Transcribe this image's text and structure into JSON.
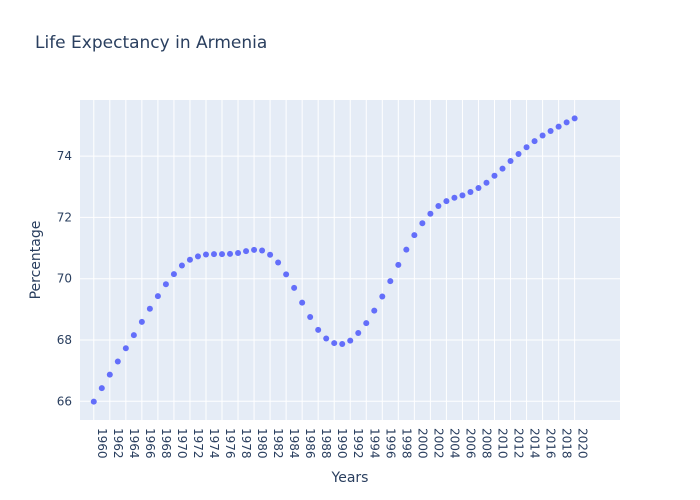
{
  "chart_data": {
    "type": "scatter",
    "title": "Life Expectancy in Armenia",
    "xlabel": "Years",
    "ylabel": "Percentage",
    "x": [
      1960,
      1961,
      1962,
      1963,
      1964,
      1965,
      1966,
      1967,
      1968,
      1969,
      1970,
      1971,
      1972,
      1973,
      1974,
      1975,
      1976,
      1977,
      1978,
      1979,
      1980,
      1981,
      1982,
      1983,
      1984,
      1985,
      1986,
      1987,
      1988,
      1989,
      1990,
      1991,
      1992,
      1993,
      1994,
      1995,
      1996,
      1997,
      1998,
      1999,
      2000,
      2001,
      2002,
      2003,
      2004,
      2005,
      2006,
      2007,
      2008,
      2009,
      2010,
      2011,
      2012,
      2013,
      2014,
      2015,
      2016,
      2017,
      2018,
      2019,
      2020
    ],
    "y": [
      65.99,
      66.43,
      66.87,
      67.3,
      67.73,
      68.16,
      68.59,
      69.02,
      69.43,
      69.82,
      70.15,
      70.43,
      70.62,
      70.73,
      70.79,
      70.8,
      70.8,
      70.81,
      70.84,
      70.9,
      70.94,
      70.92,
      70.78,
      70.53,
      70.14,
      69.7,
      69.22,
      68.75,
      68.33,
      68.05,
      67.9,
      67.87,
      67.98,
      68.23,
      68.55,
      68.96,
      69.42,
      69.92,
      70.45,
      70.95,
      71.42,
      71.81,
      72.12,
      72.37,
      72.53,
      72.64,
      72.72,
      72.83,
      72.96,
      73.13,
      73.36,
      73.59,
      73.84,
      74.07,
      74.29,
      74.49,
      74.67,
      74.82,
      74.96,
      75.1,
      75.23
    ],
    "xticks": [
      "1960",
      "1962",
      "1964",
      "1966",
      "1968",
      "1970",
      "1972",
      "1974",
      "1976",
      "1978",
      "1980",
      "1982",
      "1984",
      "1986",
      "1988",
      "1990",
      "1992",
      "1994",
      "1996",
      "1998",
      "2000",
      "2002",
      "2004",
      "2006",
      "2008",
      "2010",
      "2012",
      "2014",
      "2016",
      "2018",
      "2020"
    ],
    "yticks": [
      "66",
      "68",
      "70",
      "72",
      "74"
    ],
    "xlim": [
      1958.28,
      2025.66
    ],
    "ylim": [
      65.39,
      75.83
    ],
    "marker_color": "#636efa",
    "plot_bg": "#e5ecf6",
    "grid_color": "#ffffff",
    "text_color": "#2a3f5f"
  }
}
